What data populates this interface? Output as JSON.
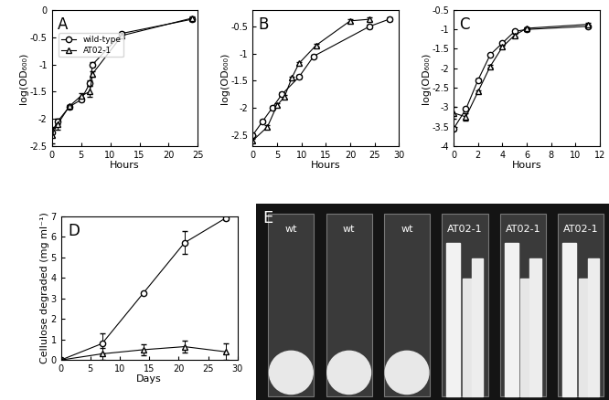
{
  "chart_data": [
    {
      "type": "line",
      "annotation": "A",
      "x_label": "Hours",
      "y_label": "log(OD₆₀₀)",
      "xlim": [
        0,
        25
      ],
      "xticks": [
        0,
        5,
        10,
        15,
        20,
        25
      ],
      "ylim": [
        -2.5,
        0
      ],
      "yticks": [
        -2.5,
        -2,
        -1.5,
        -1,
        -0.5,
        0
      ],
      "grid": false,
      "legend": "upper left",
      "series": [
        {
          "name": "wild-type",
          "color": "#000000",
          "marker": "circle",
          "x": [
            0,
            1,
            3,
            5,
            6.5,
            7,
            12,
            24
          ],
          "values": [
            -2.25,
            -2.05,
            -1.78,
            -1.65,
            -1.35,
            -1.0,
            -0.43,
            -0.17
          ],
          "errors": [
            0.08,
            0.05,
            0.03,
            0.03,
            0.05,
            0.05,
            0.03,
            0.03
          ]
        },
        {
          "name": "AT02-1",
          "color": "#000000",
          "marker": "triangle",
          "x": [
            0,
            1,
            3,
            5,
            6.5,
            7,
            12,
            24
          ],
          "values": [
            -2.3,
            -2.1,
            -1.77,
            -1.58,
            -1.5,
            -1.17,
            -0.47,
            -0.15
          ],
          "errors": [
            0.15,
            0.1,
            0.03,
            0.05,
            0.1,
            0.05,
            0.03,
            0.03
          ]
        }
      ]
    },
    {
      "type": "line",
      "annotation": "B",
      "x_label": "Hours",
      "y_label": "log(OD₆₀₀)",
      "xlim": [
        0,
        30
      ],
      "xticks": [
        0,
        5,
        10,
        15,
        20,
        25,
        30
      ],
      "ylim": [
        -2.7,
        -0.2
      ],
      "yticks": [
        -2.5,
        -2,
        -1.5,
        -1,
        -0.5
      ],
      "grid": false,
      "series": [
        {
          "name": "wild-type",
          "color": "#000000",
          "marker": "circle",
          "x": [
            0,
            2,
            4,
            6,
            9.5,
            12.5,
            24,
            28
          ],
          "values": [
            -2.5,
            -2.25,
            -2.0,
            -1.75,
            -1.43,
            -1.05,
            -0.5,
            -0.37
          ],
          "errors": [
            0.03,
            0.03,
            0.03,
            0.03,
            0.03,
            0.03,
            0.03,
            0.03
          ]
        },
        {
          "name": "AT02-1",
          "color": "#000000",
          "marker": "triangle",
          "x": [
            0,
            3,
            5,
            6.5,
            8,
            9.5,
            13,
            20,
            24
          ],
          "values": [
            -2.6,
            -2.35,
            -1.95,
            -1.8,
            -1.45,
            -1.18,
            -0.85,
            -0.4,
            -0.37
          ],
          "errors": [
            0.03,
            0.03,
            0.03,
            0.03,
            0.03,
            0.03,
            0.03,
            0.03,
            0.03
          ]
        }
      ]
    },
    {
      "type": "line",
      "annotation": "C",
      "x_label": "Hours",
      "y_label": "log(OD₆₀₀)",
      "xlim": [
        0,
        12
      ],
      "xticks": [
        0,
        2,
        4,
        6,
        8,
        10,
        12
      ],
      "ylim": [
        -4,
        -0.5
      ],
      "yticks": [
        -4,
        -3.5,
        -3,
        -2.5,
        -2,
        -1.5,
        -1,
        -0.5
      ],
      "grid": false,
      "series": [
        {
          "name": "wild-type",
          "color": "#000000",
          "marker": "circle",
          "x": [
            0,
            1,
            2,
            3,
            4,
            5,
            6,
            11
          ],
          "values": [
            -3.55,
            -3.05,
            -2.3,
            -1.65,
            -1.35,
            -1.05,
            -1.0,
            -0.92
          ],
          "errors": [
            0.05,
            0.03,
            0.03,
            0.03,
            0.03,
            0.03,
            0.03,
            0.03
          ]
        },
        {
          "name": "AT02-1",
          "color": "#000000",
          "marker": "triangle",
          "x": [
            0,
            1,
            2,
            3,
            4,
            5,
            6,
            11
          ],
          "values": [
            -3.15,
            -3.25,
            -2.6,
            -1.95,
            -1.45,
            -1.15,
            -0.97,
            -0.87
          ],
          "errors": [
            0.15,
            0.1,
            0.03,
            0.03,
            0.03,
            0.03,
            0.03,
            0.03
          ]
        }
      ]
    },
    {
      "type": "line",
      "annotation": "D",
      "x_label": "Days",
      "y_label": "Cellulose degraded (mg ml⁻¹)",
      "xlim": [
        0,
        30
      ],
      "xticks": [
        0,
        5,
        10,
        15,
        20,
        25,
        30
      ],
      "ylim": [
        0,
        7
      ],
      "yticks": [
        0,
        1,
        2,
        3,
        4,
        5,
        6,
        7
      ],
      "grid": false,
      "series": [
        {
          "name": "wild-type",
          "color": "#000000",
          "marker": "circle",
          "x": [
            0,
            7,
            14,
            21,
            28
          ],
          "values": [
            0,
            0.8,
            3.25,
            5.7,
            6.9
          ],
          "errors": [
            0,
            0.5,
            0.05,
            0.55,
            0.1
          ]
        },
        {
          "name": "AT02-1",
          "color": "#000000",
          "marker": "triangle",
          "x": [
            0,
            7,
            14,
            21,
            28
          ],
          "values": [
            0,
            0.3,
            0.5,
            0.65,
            0.4
          ],
          "errors": [
            0,
            0.3,
            0.25,
            0.3,
            0.4
          ]
        }
      ]
    },
    {
      "type": "image",
      "annotation": "E",
      "labels": [
        "wt",
        "wt",
        "wt",
        "AT02-1",
        "AT02-1",
        "AT02-1"
      ]
    }
  ]
}
